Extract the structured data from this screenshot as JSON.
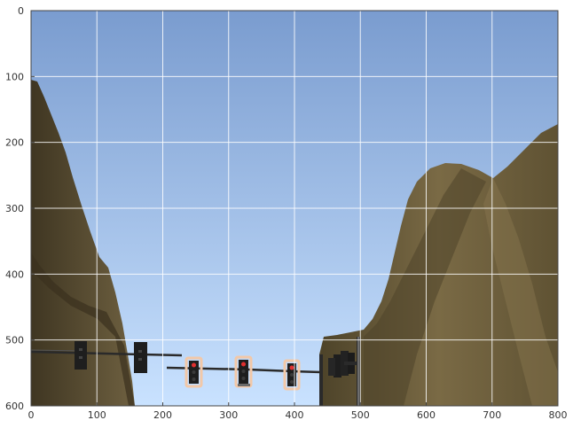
{
  "figure": {
    "axes": {
      "x_ticks": [
        "0",
        "100",
        "200",
        "300",
        "400",
        "500",
        "600",
        "700",
        "800"
      ],
      "y_ticks": [
        "0",
        "100",
        "200",
        "300",
        "400",
        "500",
        "600"
      ],
      "x_range": [
        0,
        800
      ],
      "y_range": [
        0,
        600
      ],
      "grid": true
    },
    "scene": {
      "description_icon": "road-intersection-photo",
      "sky_top": "#7a9ccf",
      "sky_bottom": "#c9e2ff",
      "hill_color": "#6b5c3a",
      "hill_shade": "#4a3f25",
      "pole_color": "#2a2a2a",
      "signal_housing": "#1e1e1e",
      "signal_red": "#e03030",
      "highlight_box": "#f2c8a8"
    }
  }
}
